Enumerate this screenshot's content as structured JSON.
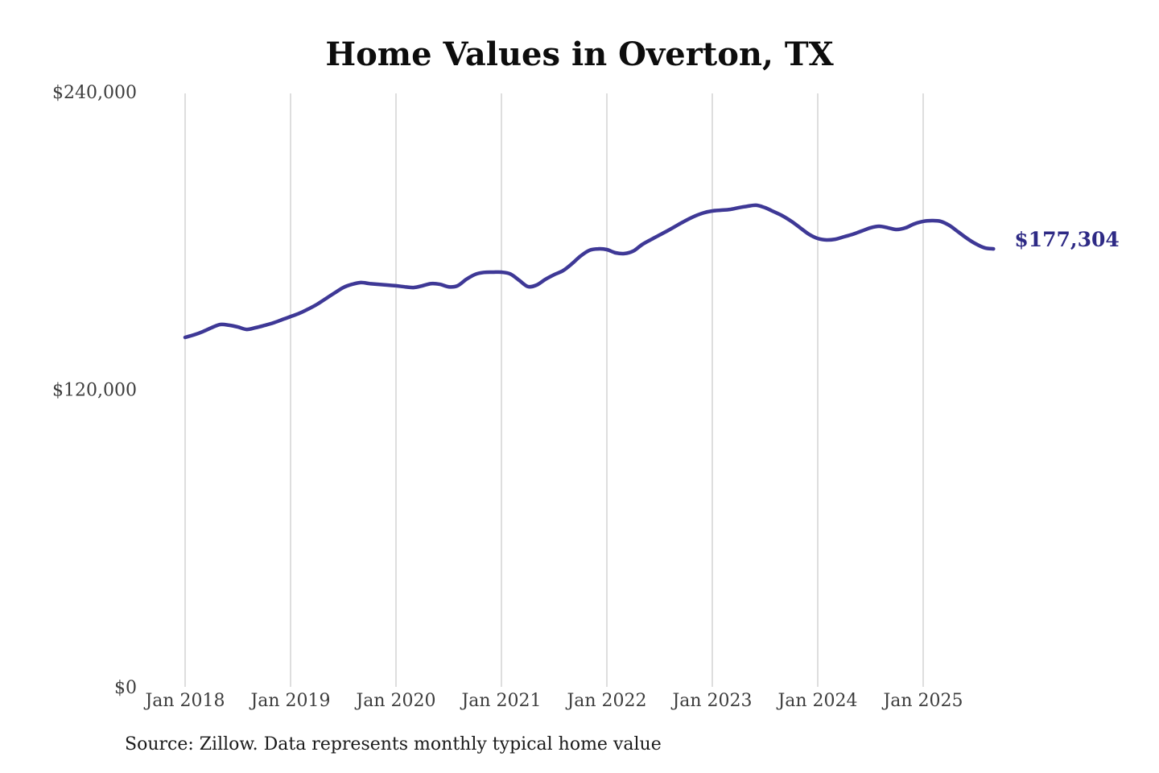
{
  "page": {
    "background_color": "#ffffff"
  },
  "chart_data": {
    "type": "line",
    "title": "Home Values in Overton, TX",
    "source": "Source: Zillow. Data represents monthly typical home value",
    "series_name": "Monthly typical home value",
    "start_month": "Jan 2018",
    "end_month": "Sep 2025",
    "end_label": "$177,304",
    "end_value": 177304,
    "ylim": [
      0,
      240000
    ],
    "grid": "vertical-only",
    "legend": "none",
    "line_color": "#3e3896",
    "end_label_color": "#2e2a85",
    "gridline_color": "#cccccc",
    "tick_label_color": "#3d3d3d",
    "title_color": "#0d0d0d",
    "source_color": "#1a1a1a",
    "y_ticks": [
      {
        "label": "$0",
        "value": 0
      },
      {
        "label": "$120,000",
        "value": 120000
      },
      {
        "label": "$240,000",
        "value": 240000
      }
    ],
    "x_ticks": [
      "Jan 2018",
      "Jan 2019",
      "Jan 2020",
      "Jan 2021",
      "Jan 2022",
      "Jan 2023",
      "Jan 2024",
      "Jan 2025"
    ],
    "months_per_x_tick": 12,
    "values": [
      141600,
      142600,
      143900,
      145500,
      146800,
      146500,
      145800,
      144800,
      145500,
      146400,
      147400,
      148700,
      150000,
      151300,
      153000,
      154900,
      157200,
      159500,
      161700,
      163000,
      163700,
      163300,
      163000,
      162700,
      162400,
      162000,
      161700,
      162400,
      163300,
      163000,
      162000,
      162400,
      165000,
      167000,
      167800,
      167900,
      167900,
      167200,
      164700,
      162100,
      162700,
      165000,
      166900,
      168500,
      171200,
      174400,
      176700,
      177300,
      177000,
      175700,
      175400,
      176400,
      179000,
      181000,
      182900,
      184800,
      186800,
      188800,
      190500,
      191800,
      192600,
      192900,
      193200,
      193900,
      194500,
      194900,
      193900,
      192300,
      190600,
      188400,
      185800,
      183200,
      181500,
      180900,
      181200,
      182200,
      183200,
      184500,
      185800,
      186400,
      185800,
      185100,
      185800,
      187400,
      188400,
      188700,
      188400,
      186700,
      184100,
      181500,
      179300,
      177700,
      177304
    ]
  }
}
